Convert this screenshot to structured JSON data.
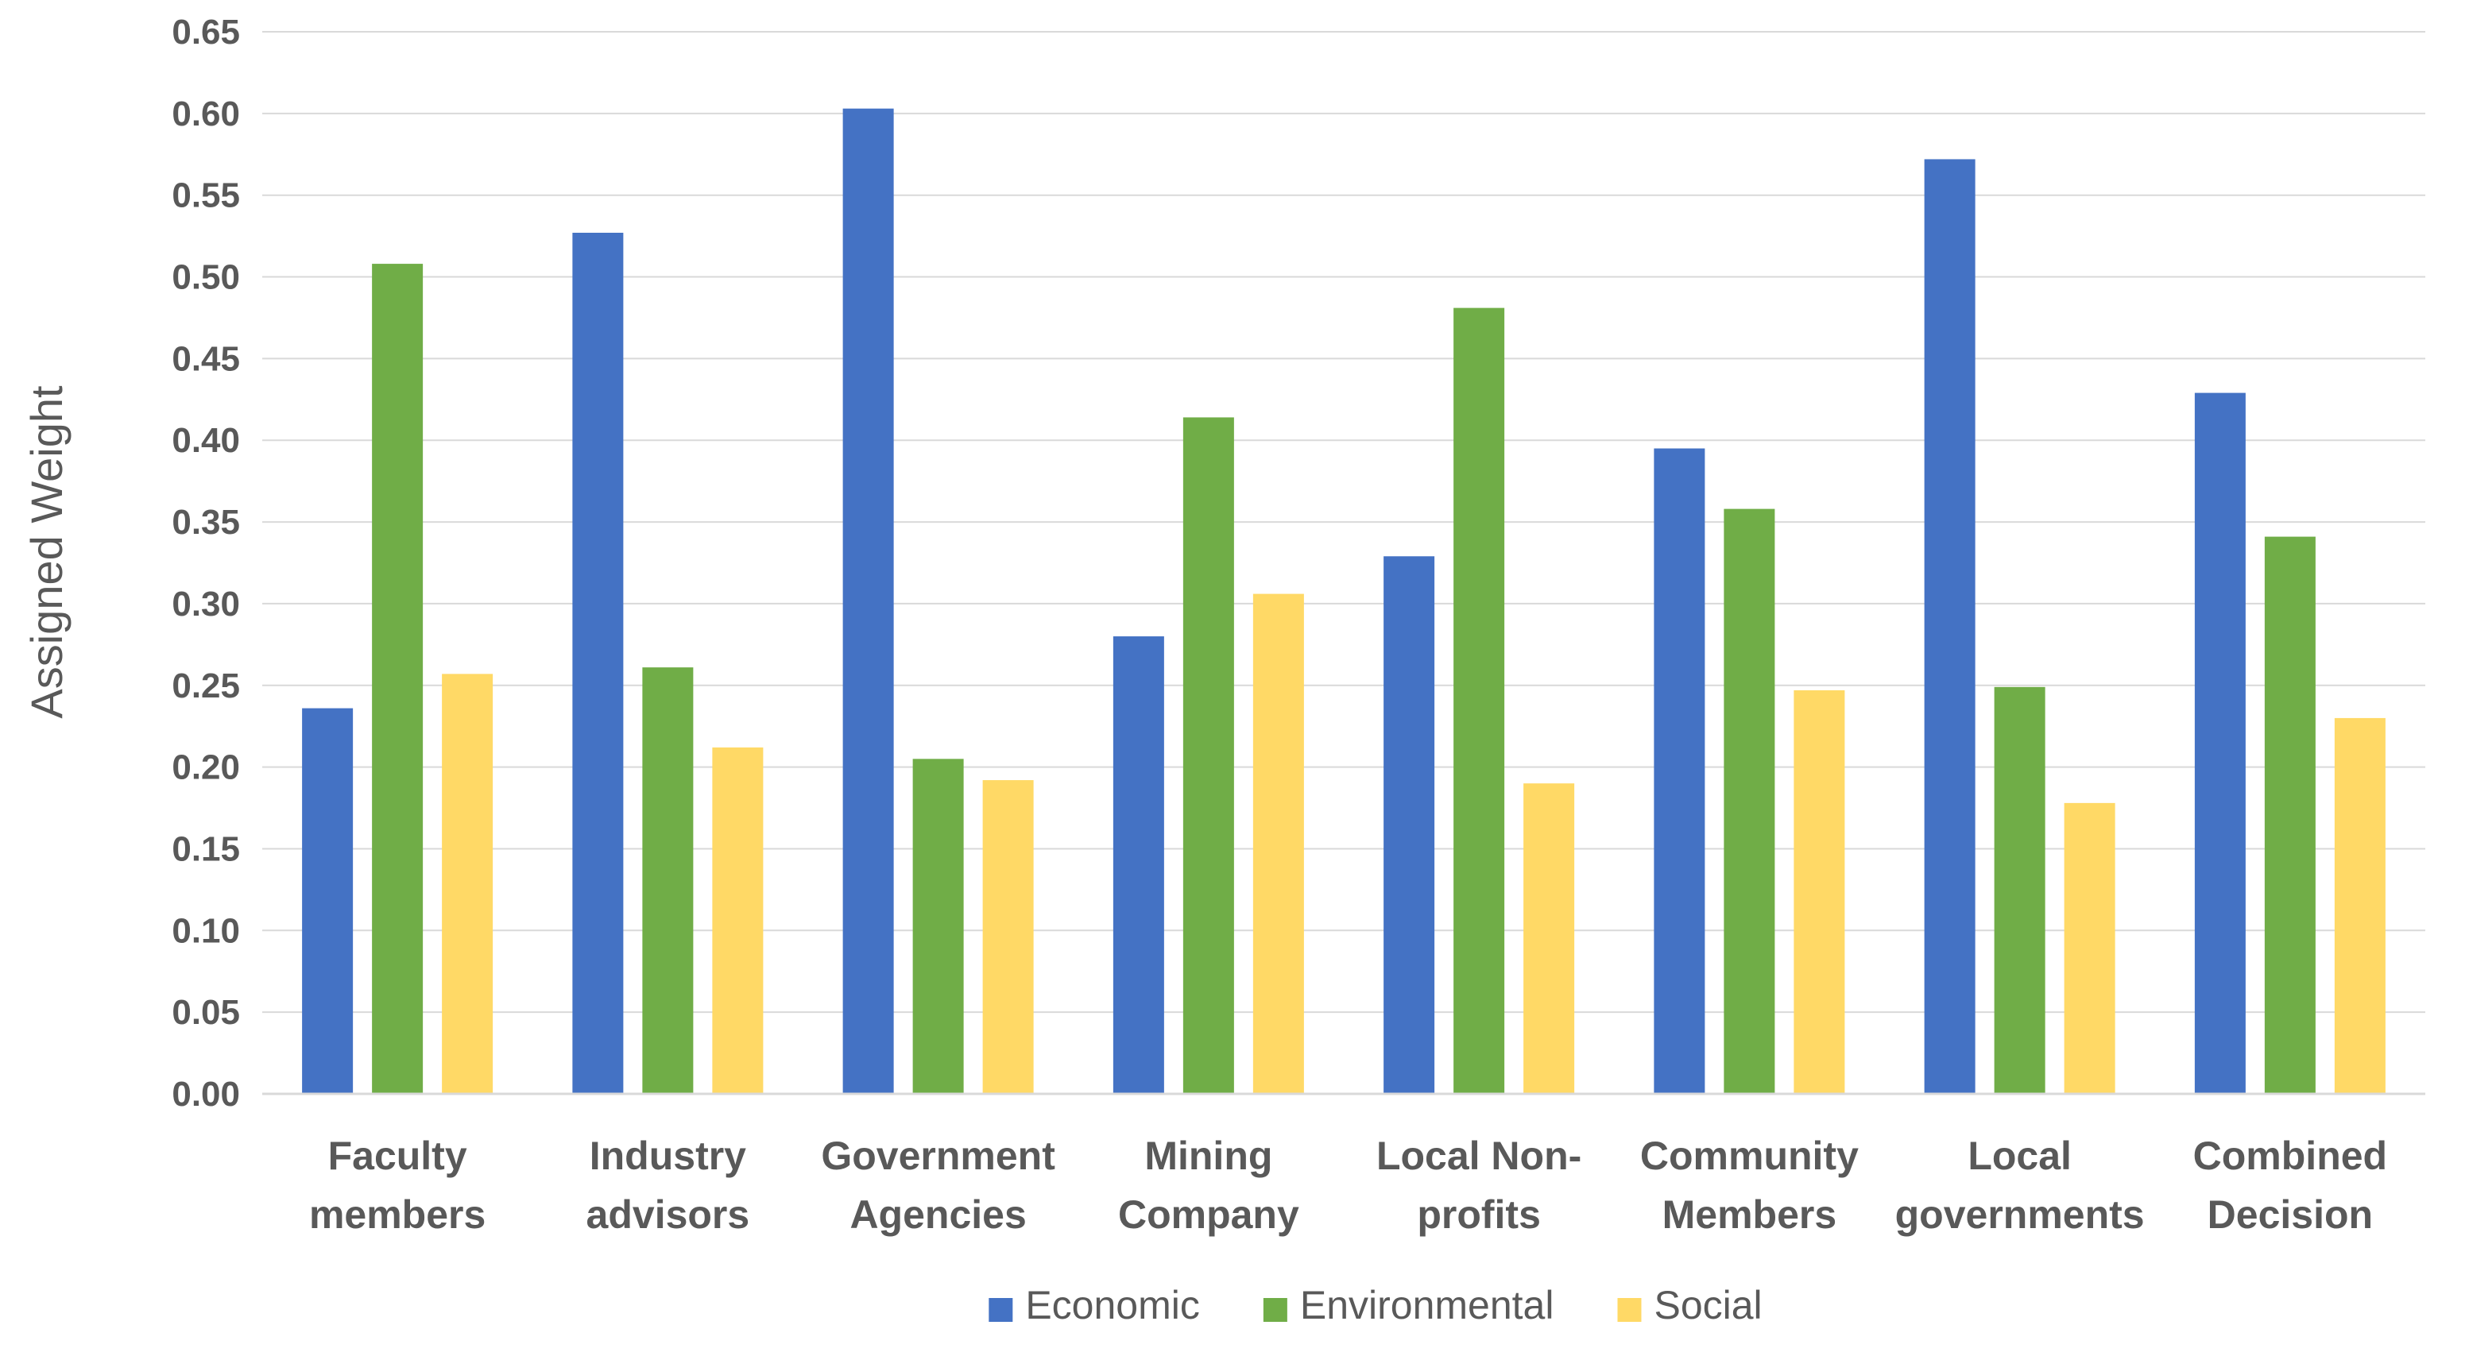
{
  "chart_data": {
    "type": "bar",
    "title": "",
    "xlabel": "",
    "ylabel": "Assigned Weight",
    "ylim": [
      0,
      0.65
    ],
    "ytick_step": 0.05,
    "yticks": [
      "0.00",
      "0.05",
      "0.10",
      "0.15",
      "0.20",
      "0.25",
      "0.30",
      "0.35",
      "0.40",
      "0.45",
      "0.50",
      "0.55",
      "0.60",
      "0.65"
    ],
    "grid": true,
    "legend_position": "bottom",
    "categories": [
      [
        "Faculty",
        "members"
      ],
      [
        "Industry",
        "advisors"
      ],
      [
        "Government",
        "Agencies"
      ],
      [
        "Mining",
        "Company"
      ],
      [
        "Local Non-",
        "profits"
      ],
      [
        "Community",
        "Members"
      ],
      [
        "Local",
        "governments"
      ],
      [
        "Combined",
        "Decision"
      ]
    ],
    "series": [
      {
        "name": "Economic",
        "color": "#4472C4",
        "values": [
          0.236,
          0.527,
          0.603,
          0.28,
          0.329,
          0.395,
          0.572,
          0.429
        ]
      },
      {
        "name": "Environmental",
        "color": "#70AD47",
        "values": [
          0.508,
          0.261,
          0.205,
          0.414,
          0.481,
          0.358,
          0.249,
          0.341
        ]
      },
      {
        "name": "Social",
        "color": "#FFD966",
        "values": [
          0.257,
          0.212,
          0.192,
          0.306,
          0.19,
          0.247,
          0.178,
          0.23
        ]
      }
    ]
  }
}
